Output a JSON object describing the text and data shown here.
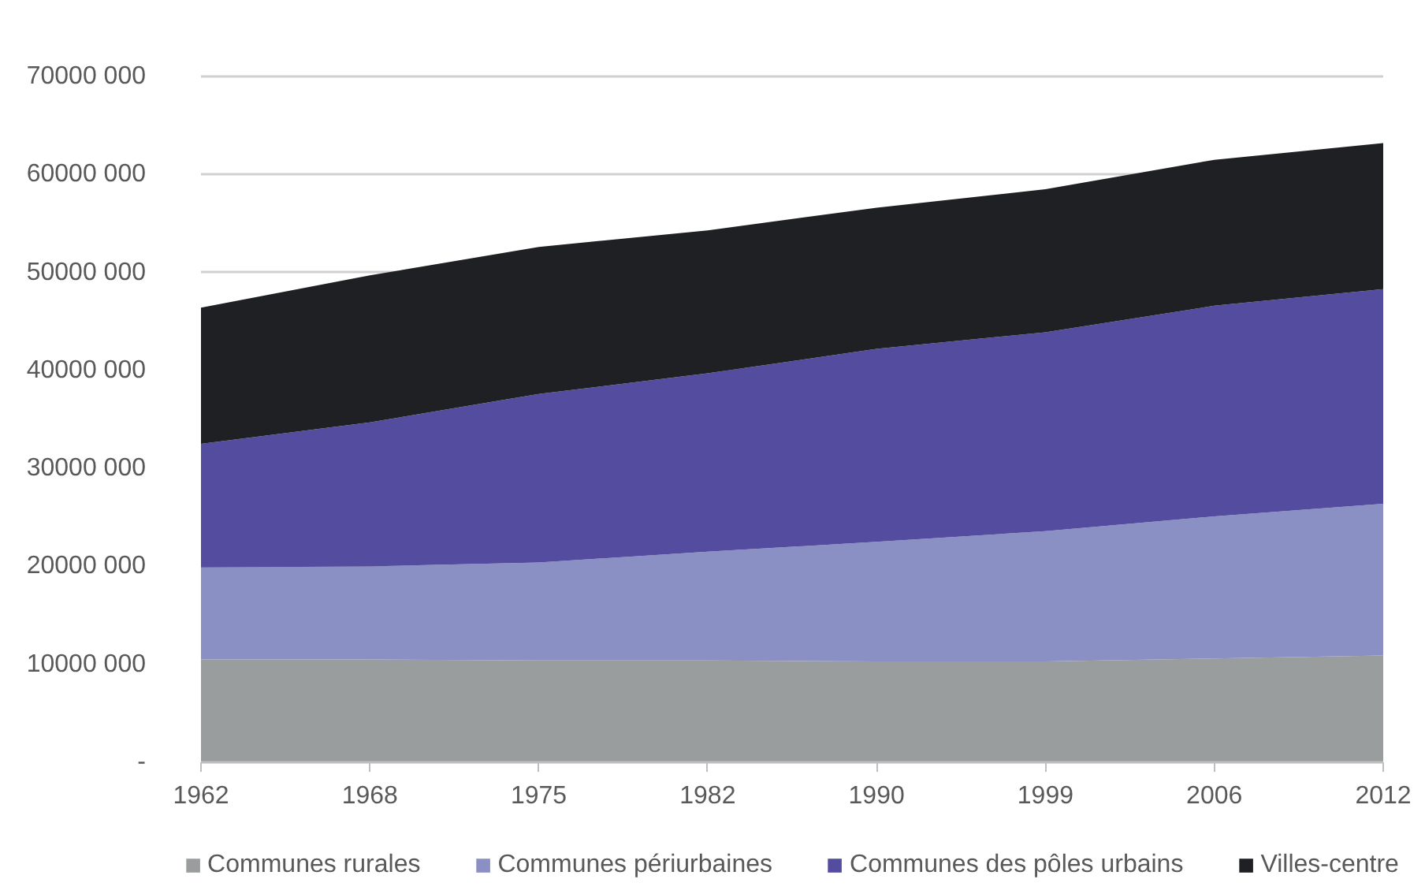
{
  "chart_data": {
    "type": "area",
    "stacked": true,
    "categories": [
      "1962",
      "1968",
      "1975",
      "1982",
      "1990",
      "1999",
      "2006",
      "2012"
    ],
    "series": [
      {
        "name": "Communes rurales",
        "color": "#9a9d9e",
        "values": [
          10500000,
          10500000,
          10400000,
          10400000,
          10300000,
          10300000,
          10600000,
          10900000
        ]
      },
      {
        "name": "Communes périurbaines",
        "color": "#8a8fc4",
        "values": [
          9400000,
          9500000,
          10000000,
          11100000,
          12200000,
          13300000,
          14500000,
          15500000
        ]
      },
      {
        "name": "Communes des pôles urbains",
        "color": "#544c9f",
        "values": [
          12600000,
          14700000,
          17200000,
          18200000,
          19700000,
          20300000,
          21500000,
          21900000
        ]
      },
      {
        "name": "Villes-centre",
        "color": "#1f2023",
        "values": [
          13900000,
          15000000,
          15000000,
          14600000,
          14400000,
          14600000,
          14900000,
          14900000
        ]
      }
    ],
    "ylim": [
      0,
      70000000
    ],
    "yticks": [
      {
        "value": 0,
        "label": "-"
      },
      {
        "value": 10000000,
        "label": "10000 000"
      },
      {
        "value": 20000000,
        "label": "20000 000"
      },
      {
        "value": 30000000,
        "label": "30000 000"
      },
      {
        "value": 40000000,
        "label": "40000 000"
      },
      {
        "value": 50000000,
        "label": "50000 000"
      },
      {
        "value": 60000000,
        "label": "60000 000"
      },
      {
        "value": 70000000,
        "label": "70000 000"
      }
    ],
    "grid": "y",
    "legend": "bottom"
  }
}
